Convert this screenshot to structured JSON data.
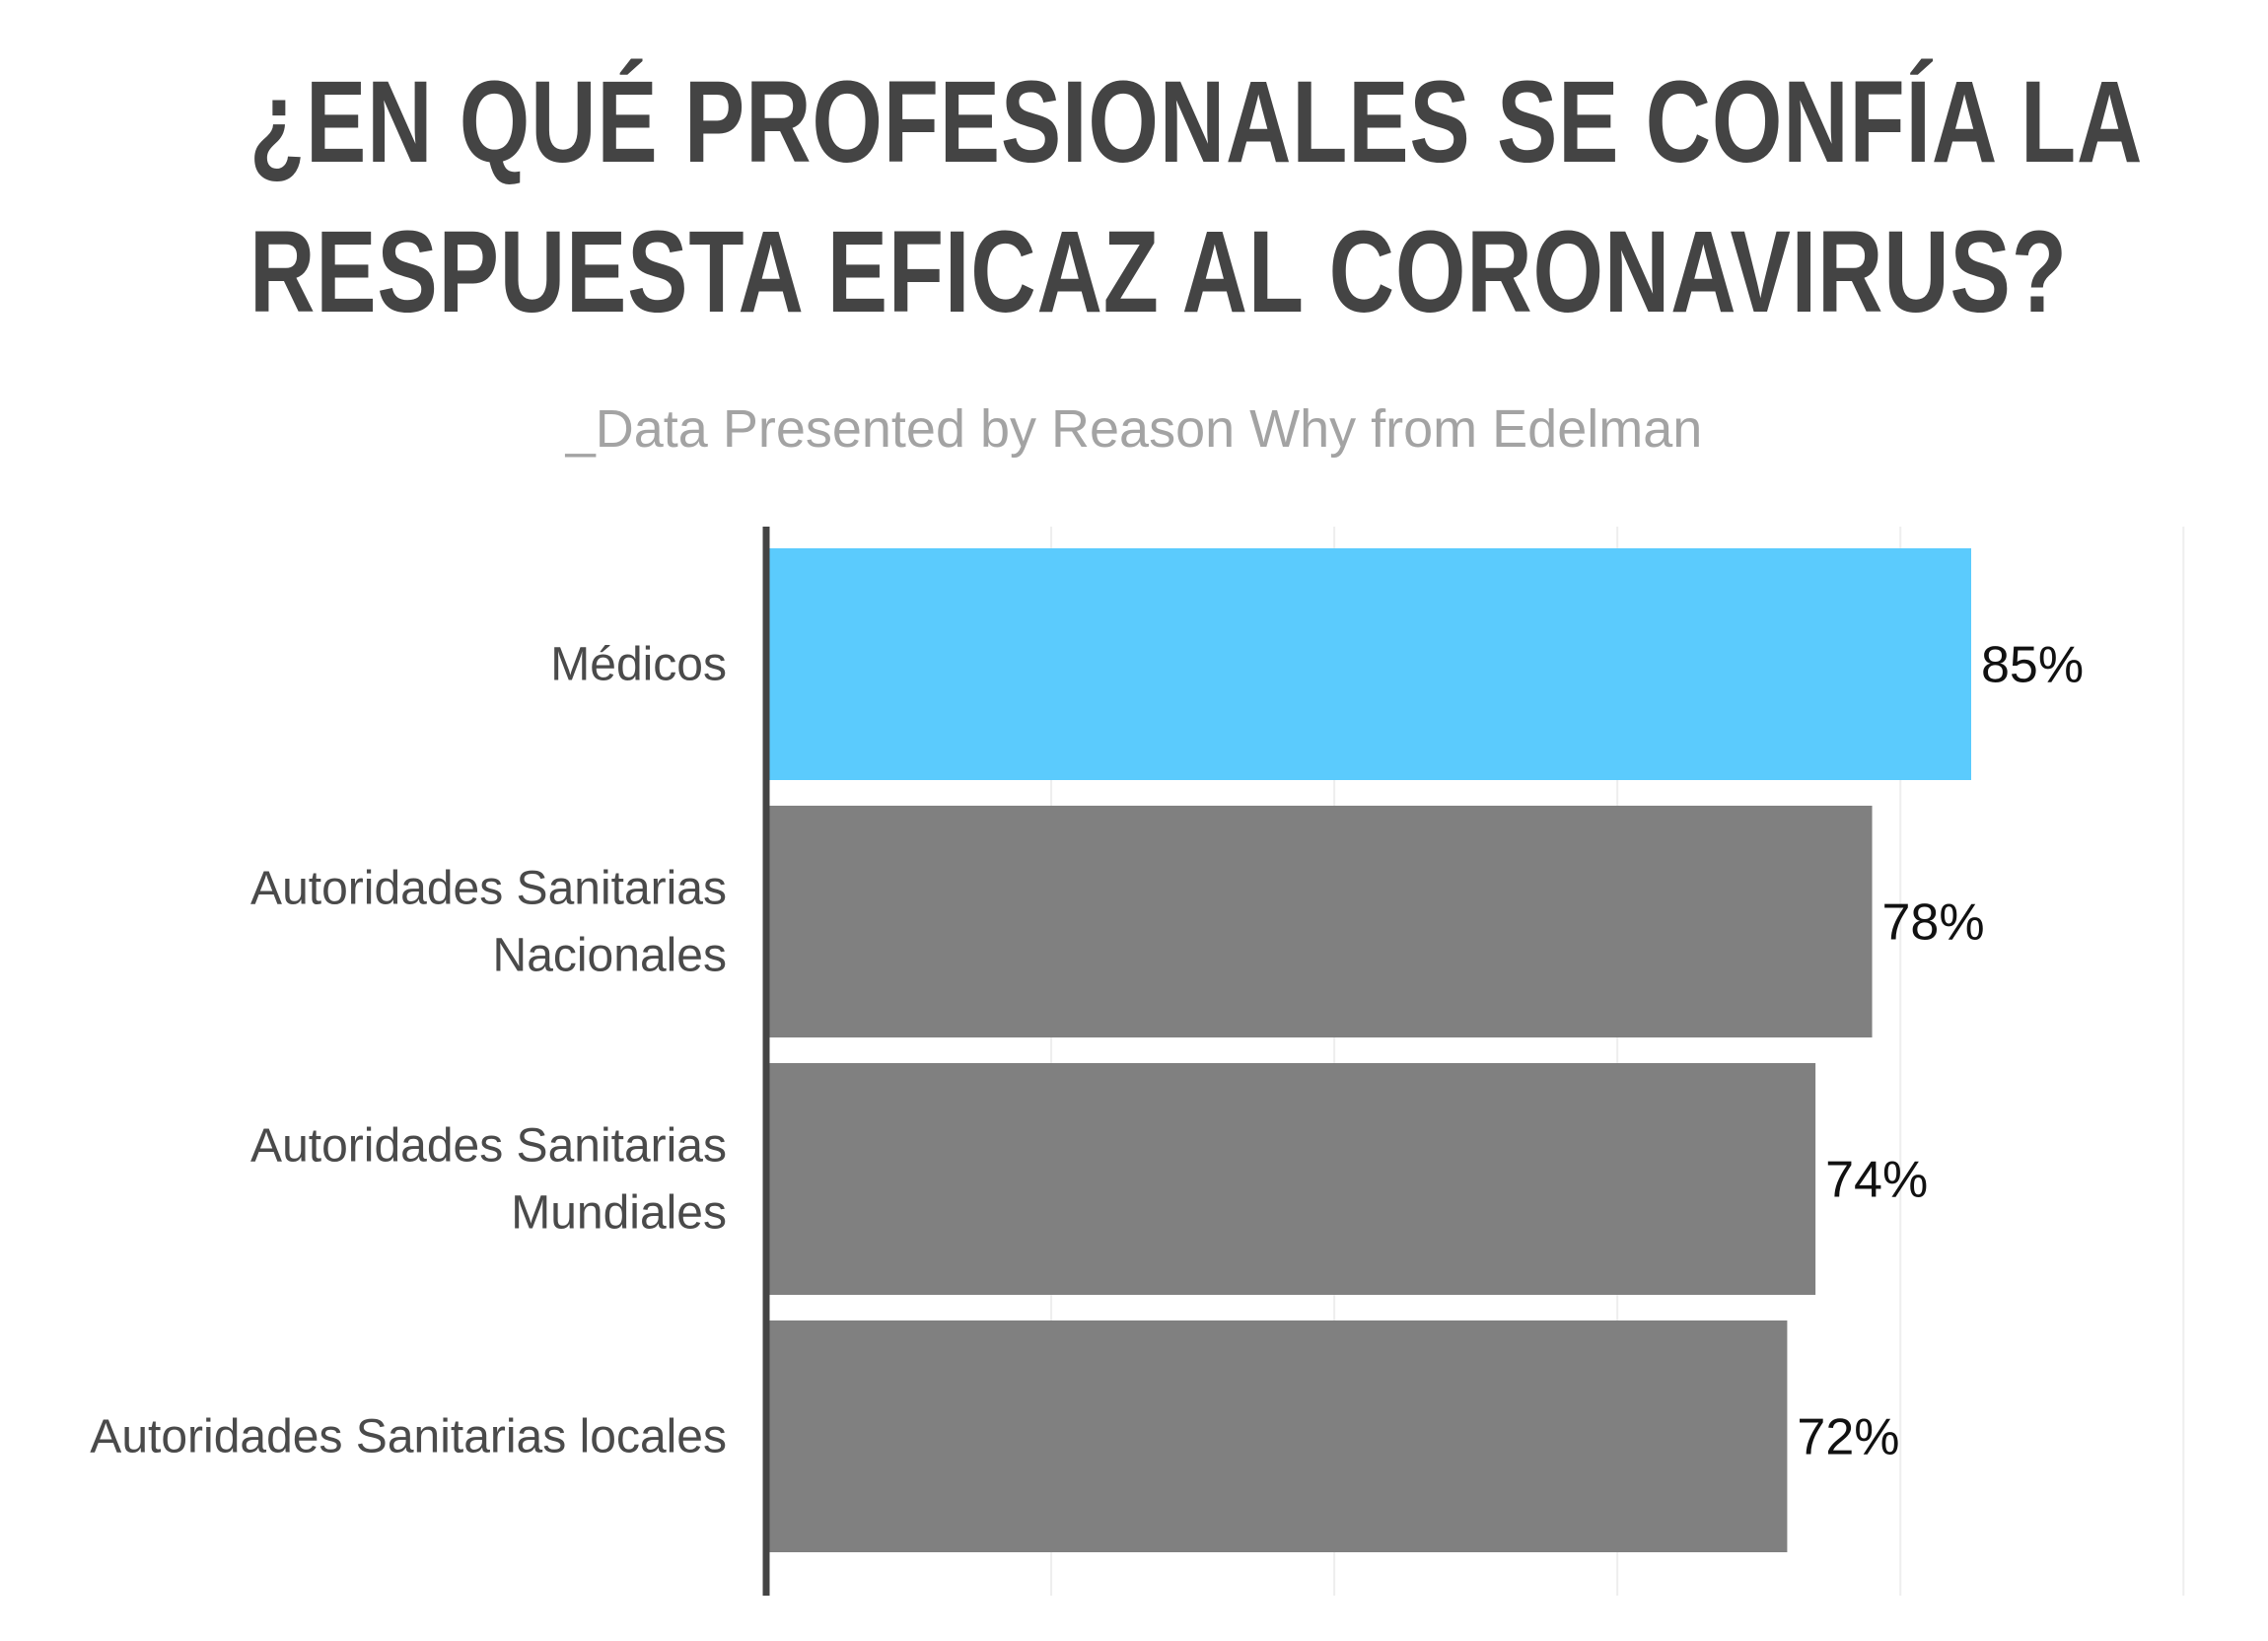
{
  "header": {
    "title_line1": "¿EN QUÉ PROFESIONALES SE CONFÍA LA",
    "title_line2": "RESPUESTA EFICAZ AL CORONAVIRUS?",
    "subtitle": "_Data Presented by Reason Why from Edelman"
  },
  "chart_data": {
    "type": "bar",
    "orientation": "horizontal",
    "title": "¿EN QUÉ PROFESIONALES SE CONFÍA LA RESPUESTA EFICAZ AL CORONAVIRUS?",
    "subtitle": "_Data Presented by Reason Why from Edelman",
    "categories": [
      [
        "Médicos"
      ],
      [
        "Autoridades Sanitarias",
        "Nacionales"
      ],
      [
        "Autoridades Sanitarias",
        "Mundiales"
      ],
      [
        "Autoridades Sanitarias locales"
      ]
    ],
    "values": [
      85,
      78,
      74,
      72
    ],
    "value_labels": [
      "85%",
      "78%",
      "74%",
      "72%"
    ],
    "xlim": [
      0,
      100
    ],
    "grid": true,
    "colors": {
      "highlight": "#5bcbfd",
      "default": "#808080",
      "axis": "#444444",
      "grid": "#eeeeee"
    },
    "highlight_index": 0
  }
}
